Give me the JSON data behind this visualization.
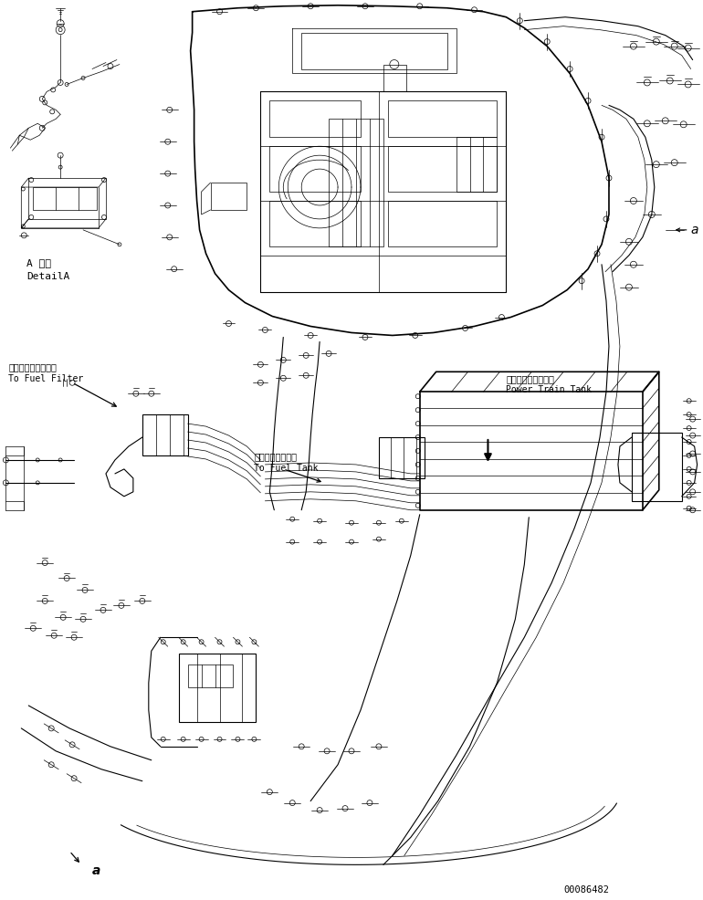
{
  "bg_color": "#ffffff",
  "line_color": "#000000",
  "fig_width": 7.7,
  "fig_height": 9.87,
  "dpi": 100,
  "labels": {
    "detail_a_jp": "A 詳細",
    "detail_a_en": "DetailA",
    "fuel_filter_jp": "フェエルフィルタへ",
    "fuel_filter_en": "To Fuel Filter",
    "fuel_tank_jp": "フェエルタンクへ",
    "fuel_tank_en": "To Fuel Tank",
    "power_train_jp": "パワートレンタンク",
    "power_train_en": "Power Train Tank",
    "label_a_right": "a",
    "label_a_bottom": "a",
    "part_number": "00086482"
  },
  "font_sizes": {
    "label": 7.0,
    "small": 6.0,
    "part_number": 7.5,
    "letter_a": 10
  }
}
